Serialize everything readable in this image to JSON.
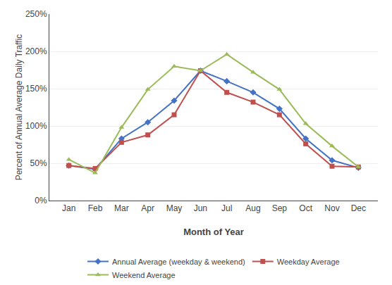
{
  "chart_data": {
    "type": "line",
    "categories": [
      "Jan",
      "Feb",
      "Mar",
      "Apr",
      "May",
      "Jun",
      "Jul",
      "Aug",
      "Sep",
      "Oct",
      "Nov",
      "Dec"
    ],
    "series": [
      {
        "name": "Annual Average (weekday & weekend)",
        "color": "#4472C4",
        "marker": "diamond",
        "values": [
          0.47,
          0.42,
          0.83,
          1.05,
          1.34,
          1.74,
          1.6,
          1.45,
          1.23,
          0.83,
          0.54,
          0.44
        ]
      },
      {
        "name": "Weekday Average",
        "color": "#C0504D",
        "marker": "square",
        "values": [
          0.47,
          0.43,
          0.78,
          0.88,
          1.15,
          1.74,
          1.45,
          1.32,
          1.15,
          0.76,
          0.46,
          0.45
        ]
      },
      {
        "name": "Weekend Average",
        "color": "#9BBB59",
        "marker": "triangle",
        "values": [
          0.55,
          0.37,
          0.98,
          1.49,
          1.8,
          1.74,
          1.96,
          1.72,
          1.49,
          1.03,
          0.73,
          0.45
        ]
      }
    ],
    "xlabel": "Month of Year",
    "ylabel": "Percent of Annual Average Daily Traffic",
    "ylim": [
      0,
      2.5
    ],
    "yticks": [
      {
        "value": 0,
        "label": "0%"
      },
      {
        "value": 0.5,
        "label": "50%"
      },
      {
        "value": 1.0,
        "label": "100%"
      },
      {
        "value": 1.5,
        "label": "150%"
      },
      {
        "value": 2.0,
        "label": "200%"
      },
      {
        "value": 2.5,
        "label": "250%"
      }
    ],
    "grid": true,
    "legend": "bottom"
  }
}
